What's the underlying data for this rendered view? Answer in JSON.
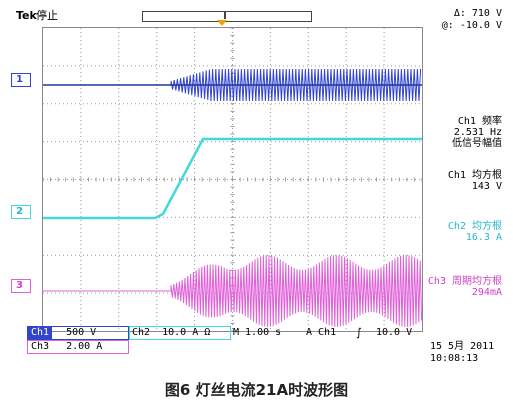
{
  "brand": "Tek",
  "run_state": "停止",
  "cursor": {
    "delta": "Δ:   710 V",
    "at": "@:  -10.0 V"
  },
  "channels": [
    {
      "id": "1",
      "color": "#3344cc"
    },
    {
      "id": "2",
      "color": "#44d8dc"
    },
    {
      "id": "3",
      "color": "#e060d8"
    }
  ],
  "measurements": [
    {
      "title": "Ch1 频率",
      "value": "2.531 Hz",
      "note": "低信号幅值",
      "color": "#000000"
    },
    {
      "title": "Ch1 均方根",
      "value": "143 V",
      "color": "#000000"
    },
    {
      "title": "Ch2 均方根",
      "value": "16.3 A",
      "color": "#22b8c8"
    },
    {
      "title": "Ch3 周期均方根",
      "value": "294mA",
      "color": "#d040c8"
    }
  ],
  "bottom_bar": {
    "ch1_label": "Ch1",
    "ch1_scale": "500 V",
    "ch2_label": "Ch2",
    "ch2_scale": "10.0 A Ω",
    "timebase": "M 1.00 s",
    "trigger_source": "A  Ch1",
    "trigger_slope": "∫",
    "trigger_level": "10.0 V",
    "ch3_label": "Ch3",
    "ch3_scale": "2.00 A",
    "date": "15 5月  2011",
    "time": "10:08:13"
  },
  "caption": "图6  灯丝电流21A时波形图"
}
